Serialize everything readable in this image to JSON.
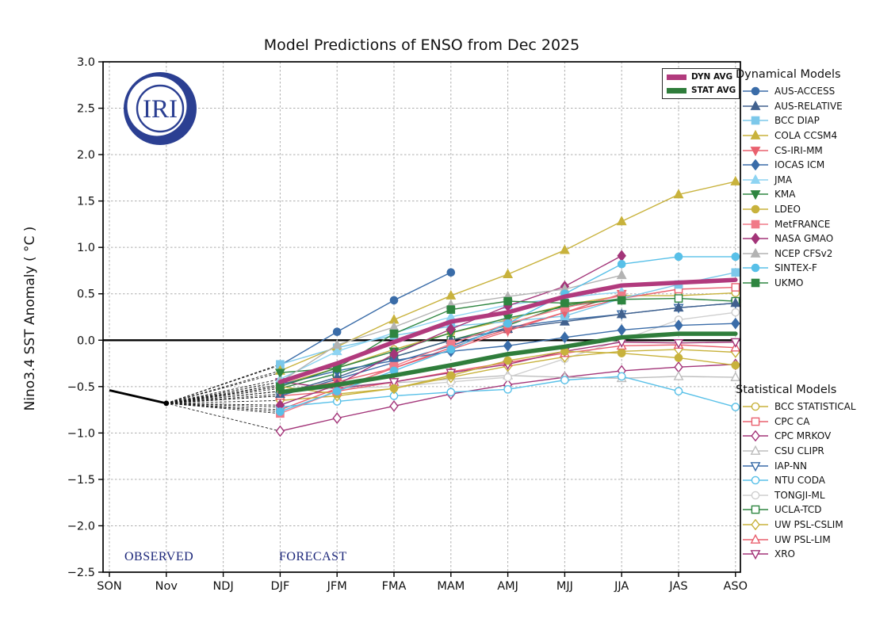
{
  "header": {
    "title": "Model Predictions of ENSO from Dec 2025"
  },
  "logo": {
    "text": "IRI",
    "color": "#2b3f92"
  },
  "annotations": {
    "observed": "OBSERVED",
    "forecast": "FORECAST",
    "color": "#1b2679"
  },
  "legends": {
    "avg": [
      {
        "label": "DYN AVG",
        "color": "#b13a7d"
      },
      {
        "label": "STAT AVG",
        "color": "#2f7d3b"
      }
    ],
    "dynamical_title": "Dynamical Models",
    "statistical_title": "Statistical Models"
  },
  "chart_data": {
    "type": "line",
    "title": "Model Predictions of ENSO from Dec 2025",
    "ylabel": "Nino3.4 SST Anomaly ( °C )",
    "xlabel": "",
    "x_categories": [
      "SON",
      "Nov",
      "NDJ",
      "DJF",
      "JFM",
      "FMA",
      "MAM",
      "AMJ",
      "MJJ",
      "JJA",
      "JAS",
      "ASO"
    ],
    "ylim": [
      -2.5,
      3.0
    ],
    "ytick_step": 0.5,
    "grid": true,
    "legend_position": "right",
    "observed_series": {
      "name": "OBSERVED",
      "color": "#000000",
      "x": [
        "SON",
        "Nov"
      ],
      "values": [
        -0.54,
        -0.68
      ]
    },
    "forecast_x": [
      "DJF",
      "JFM",
      "FMA",
      "MAM",
      "AMJ",
      "MJJ",
      "JJA",
      "JAS",
      "ASO"
    ],
    "averages": [
      {
        "name": "DYN AVG",
        "color": "#b13a7d",
        "values": [
          -0.45,
          -0.25,
          -0.02,
          0.2,
          0.3,
          0.47,
          0.59,
          0.62,
          0.65
        ]
      },
      {
        "name": "STAT AVG",
        "color": "#2f7d3b",
        "values": [
          -0.56,
          -0.48,
          -0.38,
          -0.27,
          -0.15,
          -0.07,
          0.03,
          0.07,
          0.07
        ]
      }
    ],
    "dynamical_models": [
      {
        "name": "AUS-ACCESS",
        "color": "#3a6ca8",
        "marker": "circle",
        "filled": true,
        "values": [
          -0.27,
          0.09,
          0.43,
          0.73,
          null,
          null,
          null,
          null,
          null
        ]
      },
      {
        "name": "AUS-RELATIVE",
        "color": "#41618e",
        "marker": "triangle-up",
        "filled": true,
        "values": [
          -0.58,
          -0.4,
          -0.18,
          0.0,
          0.12,
          0.2,
          0.28,
          0.35,
          0.4
        ]
      },
      {
        "name": "BCC DIAP",
        "color": "#7cc8ea",
        "marker": "square",
        "filled": true,
        "values": [
          -0.26,
          -0.08,
          0.05,
          0.15,
          0.2,
          0.26,
          0.45,
          0.6,
          0.73
        ]
      },
      {
        "name": "COLA CCSM4",
        "color": "#c8b23c",
        "marker": "triangle-up",
        "filled": true,
        "values": [
          -0.33,
          -0.07,
          0.22,
          0.48,
          0.71,
          0.97,
          1.28,
          1.57,
          1.71
        ]
      },
      {
        "name": "CS-IRI-MM",
        "color": "#e9616f",
        "marker": "triangle-down",
        "filled": true,
        "values": [
          -0.55,
          -0.45,
          -0.3,
          -0.1,
          0.1,
          0.3,
          0.5,
          null,
          null
        ]
      },
      {
        "name": "IOCAS ICM",
        "color": "#3a6ca8",
        "marker": "diamond",
        "filled": true,
        "values": [
          -0.48,
          -0.33,
          -0.22,
          -0.12,
          -0.06,
          0.03,
          0.11,
          0.16,
          0.18
        ]
      },
      {
        "name": "JMA",
        "color": "#8ed4f2",
        "marker": "triangle-up",
        "filled": true,
        "values": [
          -0.42,
          -0.12,
          0.08,
          0.25,
          0.38,
          0.46,
          0.52,
          null,
          null
        ]
      },
      {
        "name": "KMA",
        "color": "#2e8540",
        "marker": "triangle-down",
        "filled": true,
        "values": [
          -0.35,
          -0.3,
          -0.12,
          0.08,
          0.24,
          0.36,
          0.45,
          null,
          null
        ]
      },
      {
        "name": "LDEO",
        "color": "#c8b23c",
        "marker": "circle",
        "filled": true,
        "values": [
          -0.5,
          -0.58,
          -0.52,
          -0.38,
          -0.22,
          -0.12,
          -0.14,
          -0.19,
          -0.27
        ]
      },
      {
        "name": "MetFRANCE",
        "color": "#f07a88",
        "marker": "square",
        "filled": true,
        "values": [
          -0.79,
          -0.55,
          -0.28,
          -0.04,
          0.18,
          0.35,
          0.48,
          null,
          null
        ]
      },
      {
        "name": "NASA GMAO",
        "color": "#a33579",
        "marker": "diamond",
        "filled": true,
        "values": [
          -0.7,
          -0.48,
          -0.15,
          0.12,
          0.37,
          0.58,
          0.91,
          null,
          null
        ]
      },
      {
        "name": "NCEP CFSv2",
        "color": "#b3b3b3",
        "marker": "triangle-up",
        "filled": true,
        "values": [
          -0.45,
          -0.05,
          0.14,
          0.38,
          0.47,
          0.55,
          0.7,
          null,
          null
        ]
      },
      {
        "name": "SINTEX-F",
        "color": "#58c0e8",
        "marker": "circle",
        "filled": true,
        "values": [
          -0.77,
          -0.55,
          -0.33,
          -0.1,
          0.18,
          0.5,
          0.82,
          0.9,
          0.9
        ]
      },
      {
        "name": "UKMO",
        "color": "#2e8540",
        "marker": "square",
        "filled": true,
        "values": [
          -0.5,
          -0.3,
          0.07,
          0.33,
          0.42,
          0.4,
          0.43,
          null,
          null
        ]
      }
    ],
    "statistical_models": [
      {
        "name": "BCC STATISTICAL",
        "color": "#c8b23c",
        "marker": "circle",
        "filled": false,
        "values": [
          -0.48,
          -0.3,
          -0.1,
          0.08,
          0.22,
          0.38,
          0.48,
          0.48,
          0.51
        ]
      },
      {
        "name": "CPC CA",
        "color": "#e9616f",
        "marker": "square",
        "filled": false,
        "values": [
          -0.75,
          -0.52,
          -0.3,
          -0.08,
          0.12,
          0.3,
          0.45,
          0.55,
          0.57
        ]
      },
      {
        "name": "CPC MRKOV",
        "color": "#a33579",
        "marker": "diamond",
        "filled": false,
        "values": [
          -0.98,
          -0.84,
          -0.71,
          -0.58,
          -0.48,
          -0.4,
          -0.33,
          -0.29,
          -0.26
        ]
      },
      {
        "name": "CSU CLIPR",
        "color": "#bdbdbd",
        "marker": "triangle-up",
        "filled": false,
        "values": [
          -0.55,
          -0.5,
          -0.46,
          -0.42,
          -0.38,
          -0.4,
          -0.41,
          -0.39,
          -0.4
        ]
      },
      {
        "name": "IAP-NN",
        "color": "#3a6ca8",
        "marker": "triangle-down",
        "filled": false,
        "values": [
          -0.6,
          -0.42,
          -0.24,
          -0.06,
          0.14,
          0.22,
          0.28,
          0.35,
          0.4
        ]
      },
      {
        "name": "NTU CODA",
        "color": "#58c0e8",
        "marker": "circle",
        "filled": false,
        "values": [
          -0.72,
          -0.66,
          -0.6,
          -0.56,
          -0.53,
          -0.43,
          -0.39,
          -0.55,
          -0.72
        ]
      },
      {
        "name": "TONGJI-ML",
        "color": "#cfcfcf",
        "marker": "circle",
        "filled": false,
        "values": [
          -0.55,
          -0.52,
          -0.5,
          -0.45,
          -0.4,
          -0.2,
          0.0,
          0.22,
          0.3
        ]
      },
      {
        "name": "UCLA-TCD",
        "color": "#2e8540",
        "marker": "square",
        "filled": false,
        "values": [
          -0.52,
          -0.36,
          -0.18,
          0.0,
          0.16,
          0.38,
          0.44,
          0.45,
          0.42
        ]
      },
      {
        "name": "UW PSL-CSLIM",
        "color": "#c8b23c",
        "marker": "diamond",
        "filled": false,
        "values": [
          -0.65,
          -0.6,
          -0.52,
          -0.4,
          -0.28,
          -0.18,
          -0.12,
          -0.1,
          -0.13
        ]
      },
      {
        "name": "UW PSL-LIM",
        "color": "#e9616f",
        "marker": "triangle-up",
        "filled": false,
        "values": [
          -0.6,
          -0.55,
          -0.45,
          -0.34,
          -0.24,
          -0.14,
          -0.06,
          -0.05,
          -0.08
        ]
      },
      {
        "name": "XRO",
        "color": "#a33579",
        "marker": "triangle-down",
        "filled": false,
        "values": [
          -0.45,
          -0.52,
          -0.45,
          -0.35,
          -0.26,
          -0.12,
          -0.02,
          -0.03,
          -0.02
        ]
      }
    ]
  }
}
